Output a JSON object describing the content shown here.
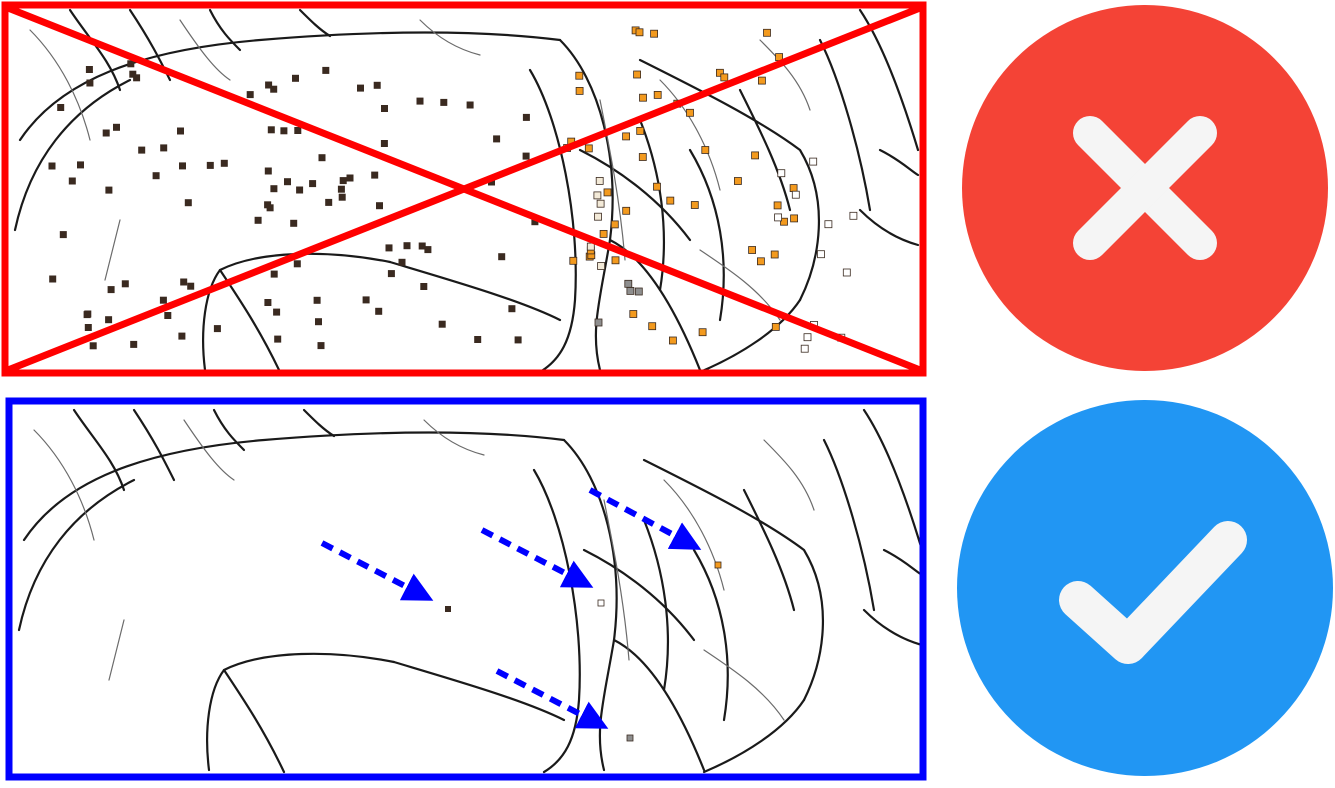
{
  "panels": {
    "wrong": {
      "frame_color": "#ff0000",
      "mark": "cross-mark",
      "hint_colors": [
        "#3a2a20",
        "#f39a1e",
        "#ffffff",
        "#f3ead8",
        "#8e8e8e"
      ]
    },
    "correct": {
      "frame_color": "#0000ff",
      "arrow_color": "#0000ff",
      "hint_colors": [
        "#3a2a20",
        "#f39a1e",
        "#ffffff",
        "#8e8e8e"
      ]
    }
  },
  "badges": {
    "wrong": {
      "icon": "close-icon",
      "fill": "#f44336",
      "glyph": "#f5f5f5"
    },
    "correct": {
      "icon": "check-icon",
      "fill": "#2196f3",
      "glyph": "#f5f5f5"
    }
  }
}
